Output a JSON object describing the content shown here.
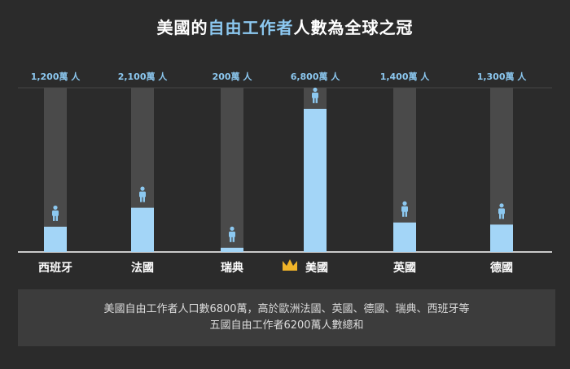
{
  "title": {
    "part1": "美國的",
    "accent": "自由工作者",
    "part2": "人數為全球之冠"
  },
  "colors": {
    "background": "#2b2b2b",
    "bar": "#a3d5f7",
    "track": "#4a4a4a",
    "icon": "#8cc8f0",
    "crown": "#f0b429",
    "text": "#ffffff"
  },
  "chart_data": {
    "type": "bar",
    "categories": [
      "西班牙",
      "法國",
      "瑞典",
      "美國",
      "英國",
      "德國"
    ],
    "values": [
      1200,
      2100,
      200,
      6800,
      1400,
      1300
    ],
    "value_labels": [
      "1,200萬 人",
      "2,100萬 人",
      "200萬 人",
      "6,800萬 人",
      "1,400萬 人",
      "1,300萬 人"
    ],
    "unit": "萬人",
    "ylim": [
      0,
      7800
    ],
    "highlight": "美國",
    "highlight_icon": "crown-icon",
    "marker_icon": "person-icon"
  },
  "footer": {
    "line1": "美國自由工作者人口數6800萬，高於歐洲法國、英國、德國、瑞典、西班牙等",
    "line2": "五國自由工作者6200萬人數總和"
  }
}
